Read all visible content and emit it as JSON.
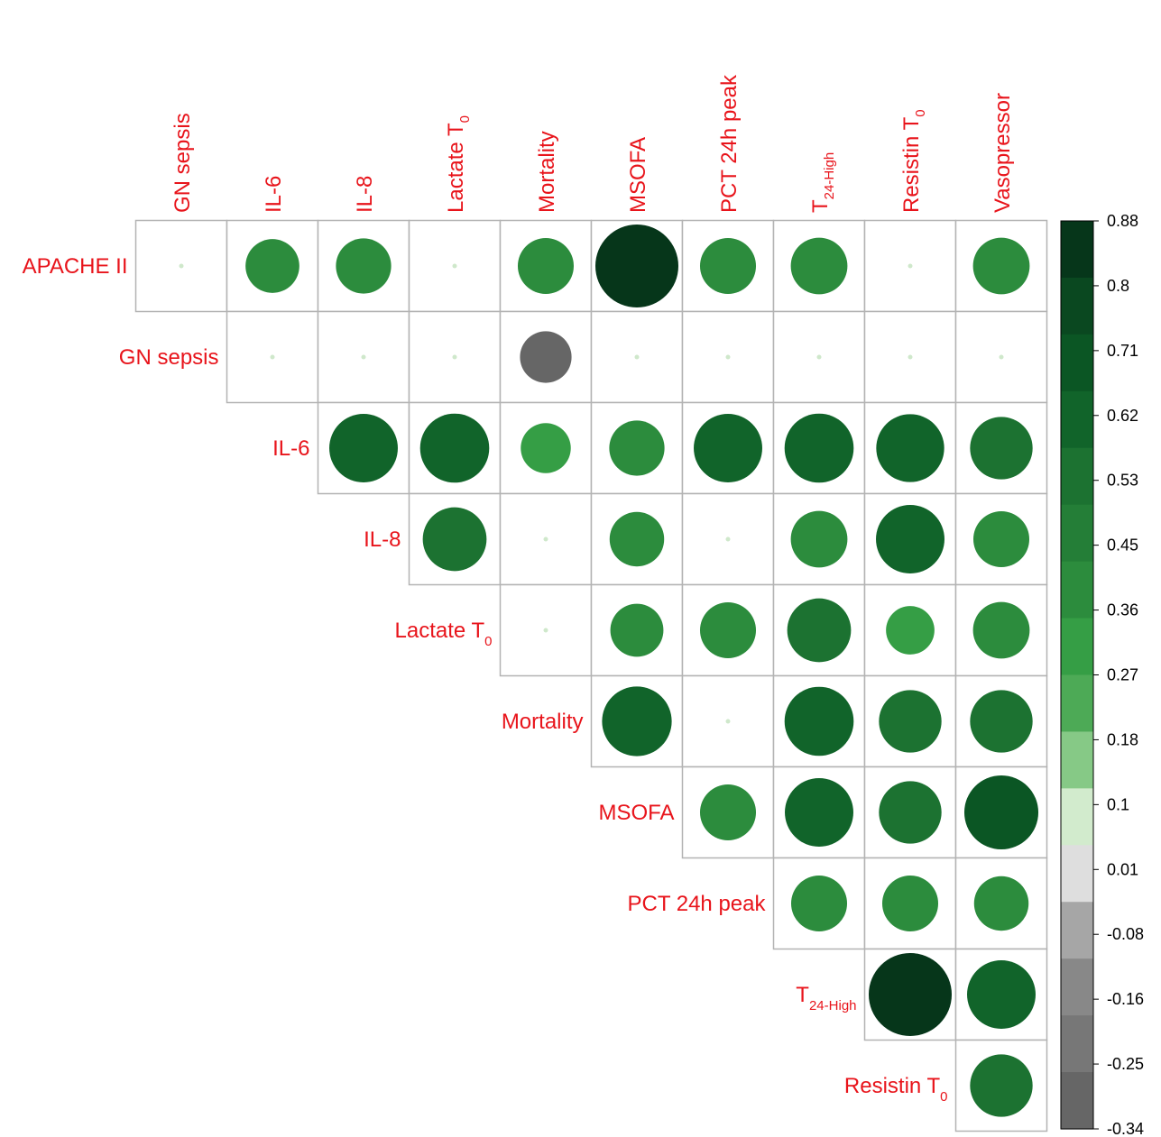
{
  "chart_data": {
    "type": "heatmap",
    "shape": "circle",
    "layout": "upper-triangle correlation matrix",
    "columns": [
      {
        "text": "GN sepsis",
        "sub": ""
      },
      {
        "text": "IL-6",
        "sub": ""
      },
      {
        "text": "IL-8",
        "sub": ""
      },
      {
        "text": "Lactate T",
        "sub": "0"
      },
      {
        "text": "Mortality",
        "sub": ""
      },
      {
        "text": "MSOFA",
        "sub": ""
      },
      {
        "text": "PCT 24h peak",
        "sub": ""
      },
      {
        "text": "T",
        "sub": "24-High"
      },
      {
        "text": "Resistin T",
        "sub": "0"
      },
      {
        "text": "Vasopressor",
        "sub": ""
      }
    ],
    "rows": [
      {
        "text": "APACHE II",
        "sub": ""
      },
      {
        "text": "GN sepsis",
        "sub": ""
      },
      {
        "text": "IL-6",
        "sub": ""
      },
      {
        "text": "IL-8",
        "sub": ""
      },
      {
        "text": "Lactate T",
        "sub": "0"
      },
      {
        "text": "Mortality",
        "sub": ""
      },
      {
        "text": "MSOFA",
        "sub": ""
      },
      {
        "text": "PCT 24h peak",
        "sub": ""
      },
      {
        "text": "T",
        "sub": "24-High"
      },
      {
        "text": "Resistin T",
        "sub": "0"
      }
    ],
    "values": [
      [
        0.02,
        0.37,
        0.39,
        0.02,
        0.4,
        0.88,
        0.4,
        0.41,
        0.02,
        0.41
      ],
      [
        null,
        0.02,
        0.02,
        0.02,
        -0.34,
        0.02,
        0.02,
        0.02,
        0.02,
        0.02
      ],
      [
        null,
        null,
        0.6,
        0.61,
        0.32,
        0.39,
        0.6,
        0.61,
        0.59,
        0.5
      ],
      [
        null,
        null,
        null,
        0.52,
        0.02,
        0.38,
        0.02,
        0.41,
        0.6,
        0.4
      ],
      [
        null,
        null,
        null,
        null,
        0.02,
        0.36,
        0.4,
        0.52,
        0.3,
        0.41
      ],
      [
        null,
        null,
        null,
        null,
        null,
        0.62,
        0.02,
        0.61,
        0.5,
        0.5
      ],
      [
        null,
        null,
        null,
        null,
        null,
        null,
        0.4,
        0.6,
        0.5,
        0.7
      ],
      [
        null,
        null,
        null,
        null,
        null,
        null,
        null,
        0.4,
        0.4,
        0.38
      ],
      [
        null,
        null,
        null,
        null,
        null,
        null,
        null,
        null,
        0.88,
        0.6
      ],
      [
        null,
        null,
        null,
        null,
        null,
        null,
        null,
        null,
        null,
        0.5
      ]
    ],
    "colorbar": {
      "ticks": [
        "0.88",
        "0.8",
        "0.71",
        "0.62",
        "0.53",
        "0.45",
        "0.36",
        "0.27",
        "0.18",
        "0.1",
        "0.01",
        "-0.08",
        "-0.16",
        "-0.25",
        "-0.34"
      ],
      "range": [
        -0.34,
        0.88
      ],
      "colors_top_to_bottom": [
        "#06361a",
        "#0a4820",
        "#0b5624",
        "#11642a",
        "#1c7231",
        "#247e37",
        "#2c8c3d",
        "#359e45",
        "#4daa56",
        "#86c986",
        "#d2ebcd",
        "#dedede",
        "#a6a6a6",
        "#888888",
        "#777777",
        "#666666"
      ]
    }
  }
}
